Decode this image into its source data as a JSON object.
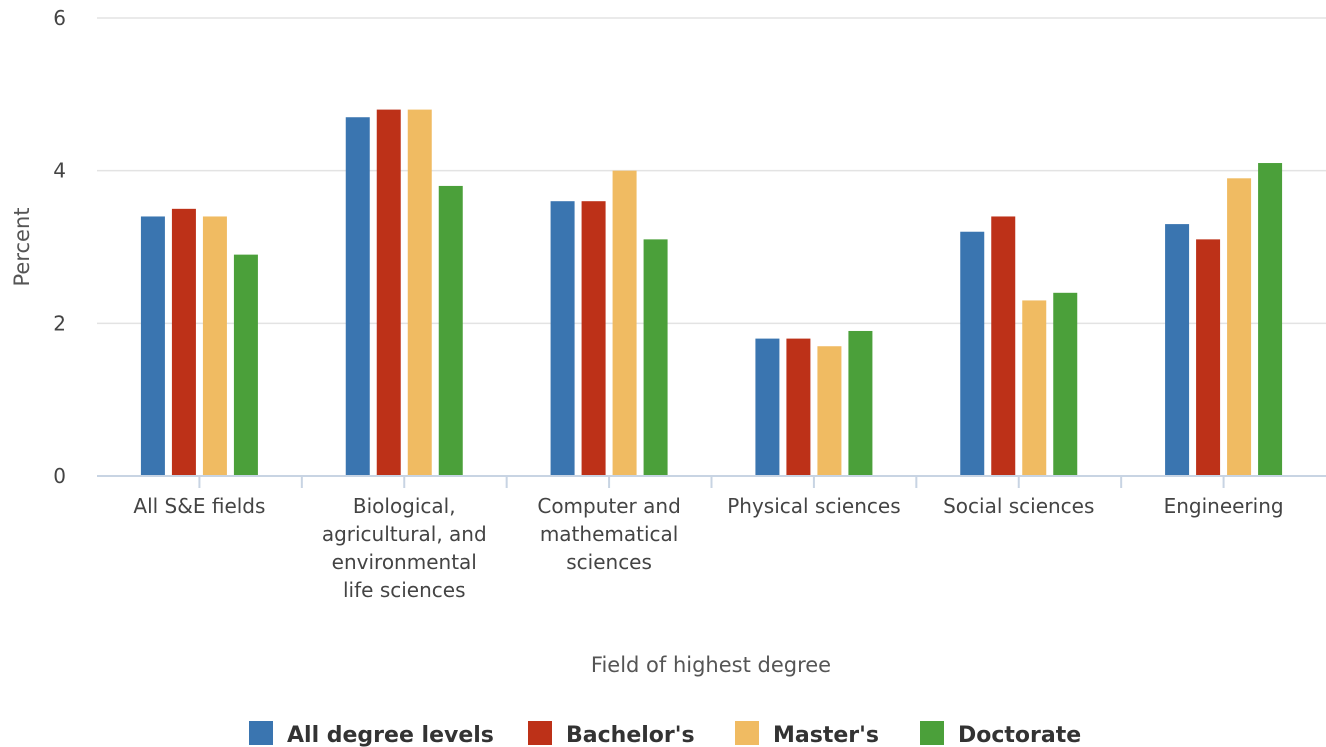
{
  "chart_data": {
    "type": "bar",
    "xlabel": "Field of highest degree",
    "ylabel": "Percent",
    "ylim": [
      0,
      6
    ],
    "yticks": [
      0,
      2,
      4,
      6
    ],
    "grid": true,
    "legend_position": "bottom",
    "categories": [
      [
        "All S&E fields"
      ],
      [
        "Biological,",
        "agricultural, and",
        "environmental",
        "life sciences"
      ],
      [
        "Computer and",
        "mathematical",
        "sciences"
      ],
      [
        "Physical sciences"
      ],
      [
        "Social sciences"
      ],
      [
        "Engineering"
      ]
    ],
    "series": [
      {
        "name": "All degree levels",
        "color": "#3a75b0",
        "values": [
          3.4,
          4.7,
          3.6,
          1.8,
          3.2,
          3.3
        ]
      },
      {
        "name": "Bachelor's",
        "color": "#bd3118",
        "values": [
          3.5,
          4.8,
          3.6,
          1.8,
          3.4,
          3.1
        ]
      },
      {
        "name": "Master's",
        "color": "#f0bb62",
        "values": [
          3.4,
          4.8,
          4.0,
          1.7,
          2.3,
          3.9
        ]
      },
      {
        "name": "Doctorate",
        "color": "#4ba03a",
        "values": [
          2.9,
          3.8,
          3.1,
          1.9,
          2.4,
          4.1
        ]
      }
    ]
  }
}
